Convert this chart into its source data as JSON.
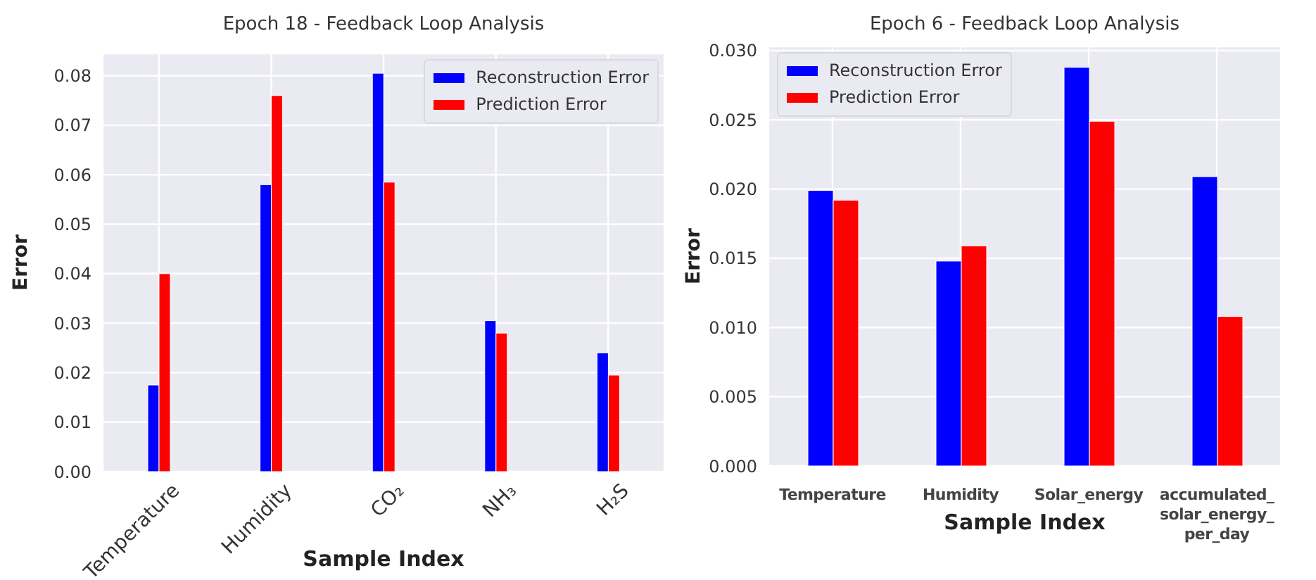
{
  "chart_data": [
    {
      "type": "bar",
      "title": "Epoch 18 - Feedback Loop Analysis",
      "xlabel": "Sample Index",
      "ylabel": "Error",
      "categories": [
        "Temperature",
        "Humidity",
        "CO₂",
        "NH₃",
        "H₂S"
      ],
      "series": [
        {
          "name": "Reconstruction Error",
          "color": "#0000ff",
          "values": [
            0.0175,
            0.058,
            0.0805,
            0.0305,
            0.024
          ]
        },
        {
          "name": "Prediction Error",
          "color": "#ff0000",
          "values": [
            0.04,
            0.076,
            0.0585,
            0.028,
            0.0195
          ]
        }
      ],
      "ylim": [
        0,
        0.0845
      ],
      "yticks": [
        {
          "value": 0,
          "label": "0.00"
        },
        {
          "value": 0.01,
          "label": "0.01"
        },
        {
          "value": 0.02,
          "label": "0.02"
        },
        {
          "value": 0.03,
          "label": "0.03"
        },
        {
          "value": 0.04,
          "label": "0.04"
        },
        {
          "value": 0.05,
          "label": "0.05"
        },
        {
          "value": 0.06,
          "label": "0.06"
        },
        {
          "value": 0.07,
          "label": "0.07"
        },
        {
          "value": 0.08,
          "label": "0.08"
        }
      ],
      "grid": true,
      "legend": "top right"
    },
    {
      "type": "bar",
      "title": "Epoch 6 - Feedback Loop Analysis",
      "xlabel": "Sample Index",
      "ylabel": "Error",
      "categories": [
        "Temperature",
        "Humidity",
        "Solar_energy",
        "accumulated_solar_energy_per_day"
      ],
      "series": [
        {
          "name": "Reconstruction Error",
          "color": "#0000ff",
          "values": [
            0.0199,
            0.0148,
            0.0288,
            0.0209
          ]
        },
        {
          "name": "Prediction Error",
          "color": "#ff0000",
          "values": [
            0.0192,
            0.0159,
            0.0249,
            0.0108
          ]
        }
      ],
      "ylim": [
        0,
        0.0303
      ],
      "yticks": [
        {
          "value": 0,
          "label": "0.000"
        },
        {
          "value": 0.005,
          "label": "0.005"
        },
        {
          "value": 0.01,
          "label": "0.010"
        },
        {
          "value": 0.015,
          "label": "0.015"
        },
        {
          "value": 0.02,
          "label": "0.020"
        },
        {
          "value": 0.025,
          "label": "0.025"
        },
        {
          "value": 0.03,
          "label": "0.030"
        }
      ],
      "grid": true,
      "legend": "top left"
    }
  ]
}
